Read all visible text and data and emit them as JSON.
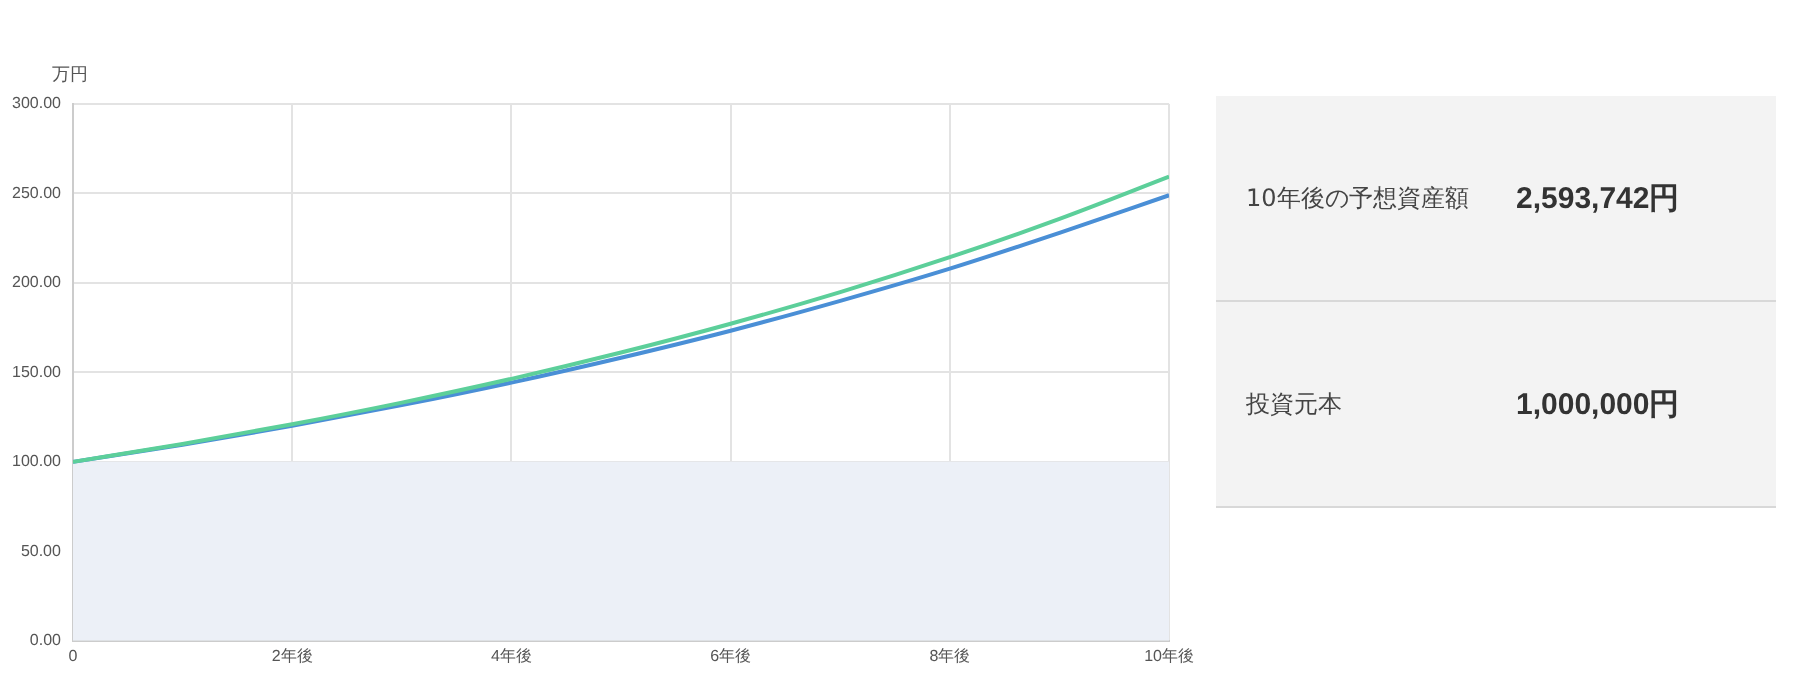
{
  "chart_data": [
    {
      "type": "line",
      "ylabel": "万円",
      "x": [
        0,
        1,
        2,
        3,
        4,
        5,
        6,
        7,
        8,
        9,
        10
      ],
      "series": [
        {
          "type": "area",
          "color": "#ecf0f7",
          "x": [
            0,
            10
          ],
          "values": [
            100,
            100
          ]
        },
        {
          "color": "#5ccf9a",
          "values": [
            100,
            110,
            121,
            133.1,
            146.4,
            161.1,
            177.2,
            194.9,
            214.4,
            235.8,
            259.4
          ]
        },
        {
          "color": "#4a8fd6",
          "values": [
            100,
            109.6,
            120.1,
            131.7,
            144.3,
            158.2,
            173.3,
            190,
            208,
            228,
            249
          ]
        }
      ],
      "xlim": [
        0,
        10
      ],
      "xticks": [
        0,
        {
          "value": 2,
          "label": "2年後"
        },
        {
          "value": 4,
          "label": "4年後"
        },
        {
          "value": 6,
          "label": "6年後"
        },
        {
          "value": 8,
          "label": "8年後"
        },
        {
          "value": 10,
          "label": "10年後"
        }
      ],
      "ylim": [
        0,
        300
      ],
      "yticks": [
        {
          "value": 0,
          "label": "0.00"
        },
        {
          "value": 50,
          "label": "50.00"
        },
        {
          "value": 100,
          "label": "100.00"
        },
        {
          "value": 150,
          "label": "150.00"
        },
        {
          "value": 200,
          "label": "200.00"
        },
        {
          "value": 250,
          "label": "250.00"
        },
        {
          "value": 300,
          "label": "300.00"
        }
      ],
      "grid": true,
      "legend": false,
      "marker": "none",
      "line_style": "solid"
    },
    {
      "type": "other",
      "annotations": [
        "10年後の予想資産額",
        "2,593,742円",
        "投資元本",
        "1,000,000円"
      ]
    }
  ]
}
